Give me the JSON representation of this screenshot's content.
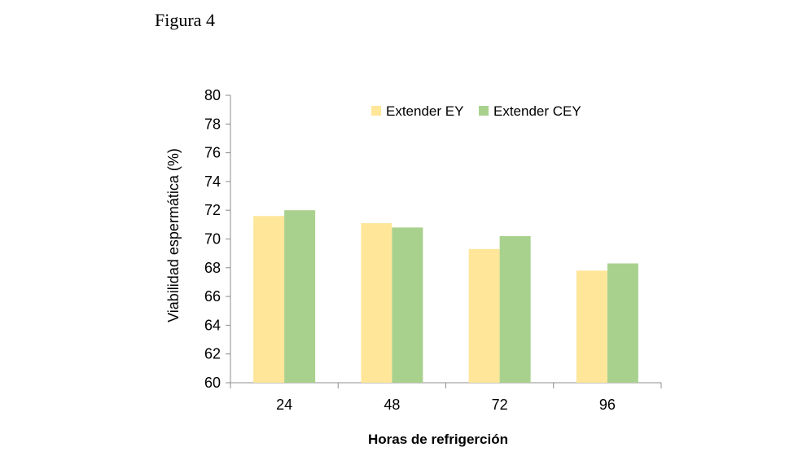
{
  "figure_label": "Figura 4",
  "chart_data": {
    "type": "bar",
    "categories": [
      "24",
      "48",
      "72",
      "96"
    ],
    "series": [
      {
        "name": "Extender EY",
        "color": "#FFE699",
        "values": [
          71.6,
          71.1,
          69.3,
          67.8
        ]
      },
      {
        "name": "Extender CEY",
        "color": "#A9D18E",
        "values": [
          72.0,
          70.8,
          70.2,
          68.3
        ]
      }
    ],
    "xlabel": "Horas de refrigerción",
    "ylabel": "Viabilidad espermática (%)",
    "ylim": [
      60,
      80
    ],
    "yticks": [
      60,
      62,
      64,
      66,
      68,
      70,
      72,
      74,
      76,
      78,
      80
    ],
    "grid": false,
    "legend_position": "top"
  }
}
